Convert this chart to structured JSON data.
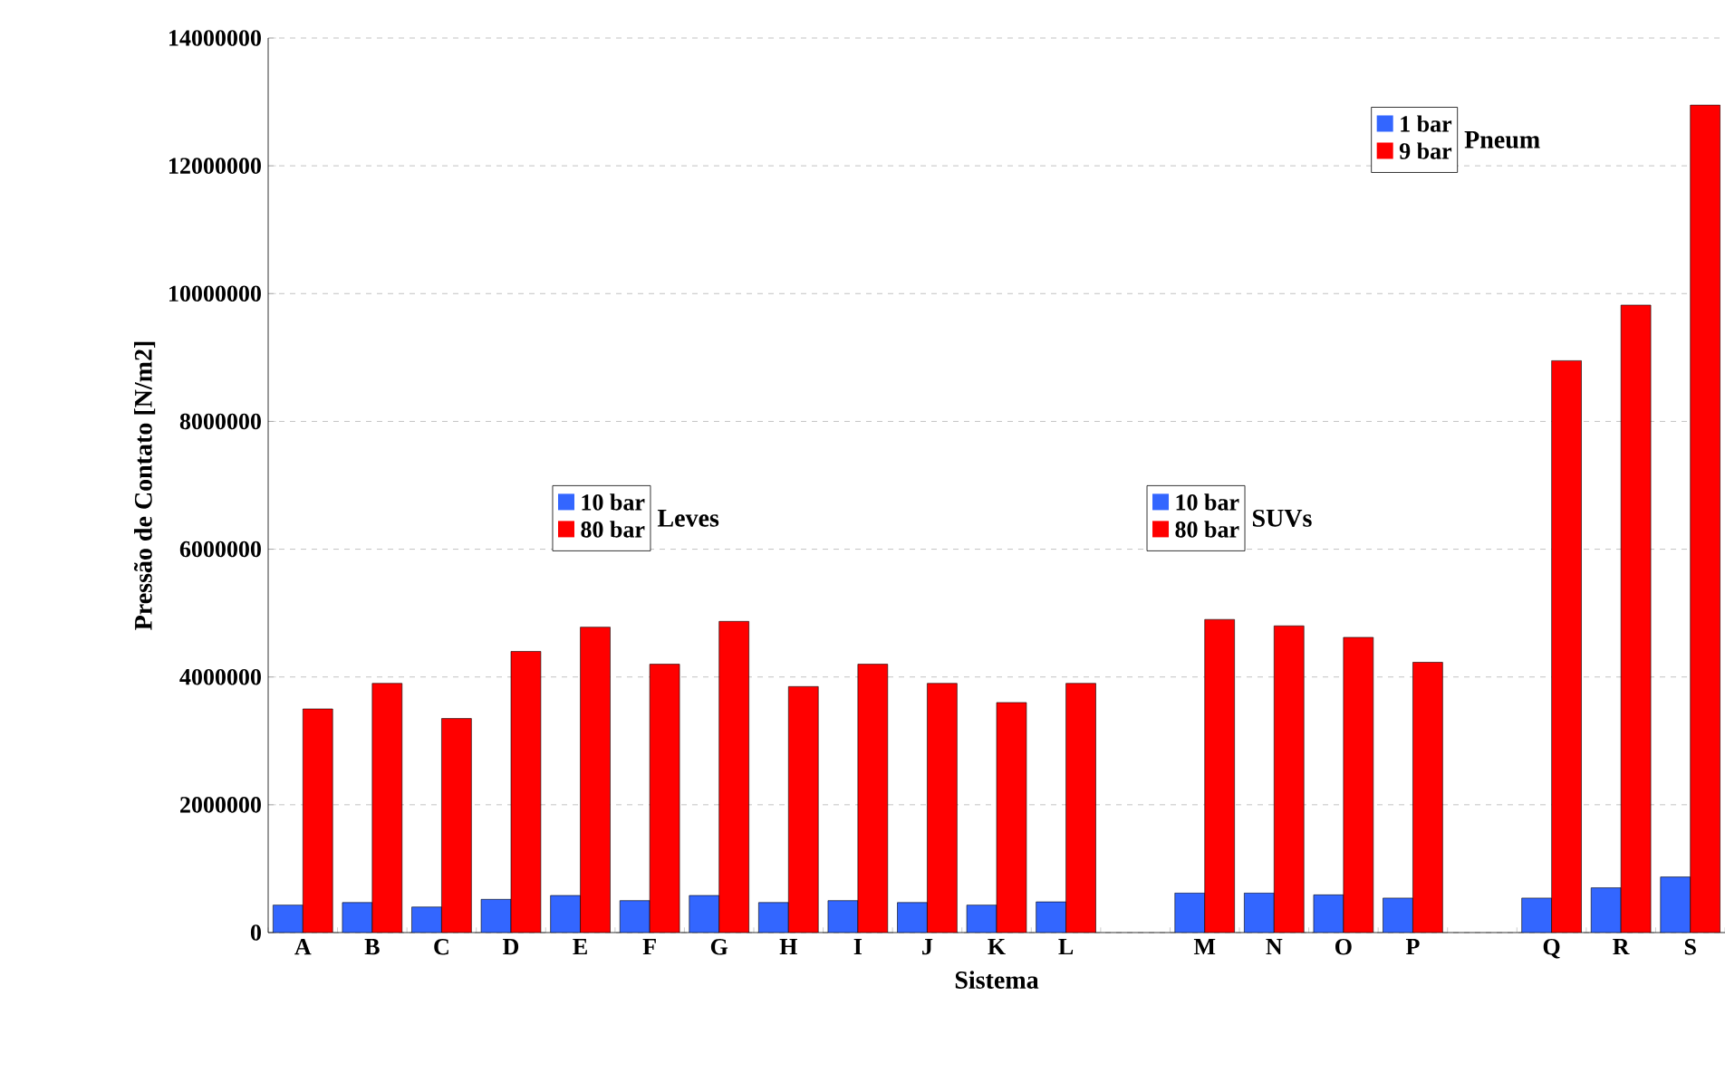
{
  "chart_data": {
    "type": "bar",
    "xlabel": "Sistema",
    "ylabel": "Pressão de Contato [N/m2]",
    "categories": [
      "A",
      "B",
      "C",
      "D",
      "E",
      "F",
      "G",
      "H",
      "I",
      "J",
      "K",
      "L",
      null,
      "M",
      "N",
      "O",
      "P",
      null,
      "Q",
      "R",
      "S"
    ],
    "series": [
      {
        "name": "10 bar",
        "color": "#3366ff",
        "values": [
          430000,
          470000,
          400000,
          520000,
          580000,
          500000,
          580000,
          470000,
          500000,
          470000,
          430000,
          480000,
          null,
          null,
          null,
          null,
          null,
          null,
          null,
          null,
          null
        ]
      },
      {
        "name": "80 bar",
        "color": "#ff0000",
        "values": [
          3500000,
          3900000,
          3350000,
          4400000,
          4780000,
          4200000,
          4870000,
          3850000,
          4200000,
          3900000,
          3600000,
          3900000,
          null,
          null,
          null,
          null,
          null,
          null,
          null,
          null,
          null
        ]
      },
      {
        "name": "10 bar",
        "color": "#3366ff",
        "values": [
          null,
          null,
          null,
          null,
          null,
          null,
          null,
          null,
          null,
          null,
          null,
          null,
          null,
          620000,
          620000,
          590000,
          540000,
          null,
          null,
          null,
          null
        ]
      },
      {
        "name": "80 bar",
        "color": "#ff0000",
        "values": [
          null,
          null,
          null,
          null,
          null,
          null,
          null,
          null,
          null,
          null,
          null,
          null,
          null,
          4900000,
          4800000,
          4620000,
          4230000,
          null,
          null,
          null,
          null
        ]
      },
      {
        "name": "1 bar",
        "color": "#3366ff",
        "values": [
          null,
          null,
          null,
          null,
          null,
          null,
          null,
          null,
          null,
          null,
          null,
          null,
          null,
          null,
          null,
          null,
          null,
          null,
          540000,
          700000,
          870000
        ]
      },
      {
        "name": "9 bar",
        "color": "#ff0000",
        "values": [
          null,
          null,
          null,
          null,
          null,
          null,
          null,
          null,
          null,
          null,
          null,
          null,
          null,
          null,
          null,
          null,
          null,
          null,
          8950000,
          9820000,
          12950000
        ]
      }
    ],
    "annotations": [
      "Leves",
      "SUVs",
      "Pneum"
    ],
    "ylim": [
      0,
      14000000
    ],
    "yticks": [
      0,
      2000000,
      4000000,
      6000000,
      8000000,
      10000000,
      12000000,
      14000000
    ],
    "grid": "y",
    "legend": "top"
  }
}
